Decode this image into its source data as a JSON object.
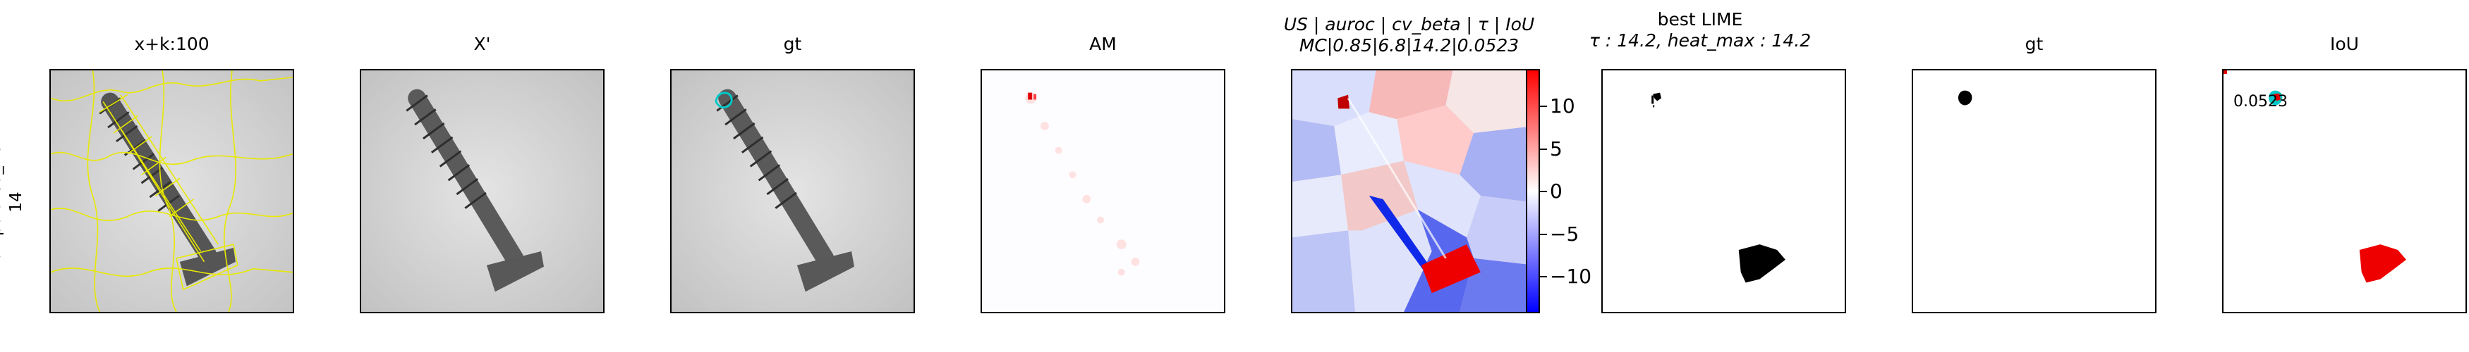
{
  "row_label": {
    "line1": "manipulated_front",
    "line2": "14"
  },
  "panels": [
    {
      "title": "x+k:100"
    },
    {
      "title": "X'"
    },
    {
      "title": "gt"
    },
    {
      "title": "AM"
    },
    {
      "title_line1": "US | auroc | cv_beta | τ | IoU",
      "title_line2": "MC|0.85|6.8|14.2|0.0523"
    },
    {
      "title_line1": "best LIME",
      "title_line2": "τ : 14.2, heat_max : 14.2"
    },
    {
      "title": "gt"
    },
    {
      "title": "IoU",
      "value": "0.0523"
    }
  ],
  "colorbar": {
    "ticks": [
      "10",
      "5",
      "0",
      "−5",
      "−10"
    ],
    "tick_values": [
      10,
      5,
      0,
      -5,
      -10
    ],
    "range": [
      -14.2,
      14.2
    ],
    "colors": {
      "high": "#ff0000",
      "mid": "#ffffff",
      "low": "#0000ff"
    }
  },
  "colors": {
    "segment_boundary": "#e8e800",
    "gt_outline": "#00c8c8",
    "mask": "#000000",
    "iou_pred": "#ff0000"
  }
}
